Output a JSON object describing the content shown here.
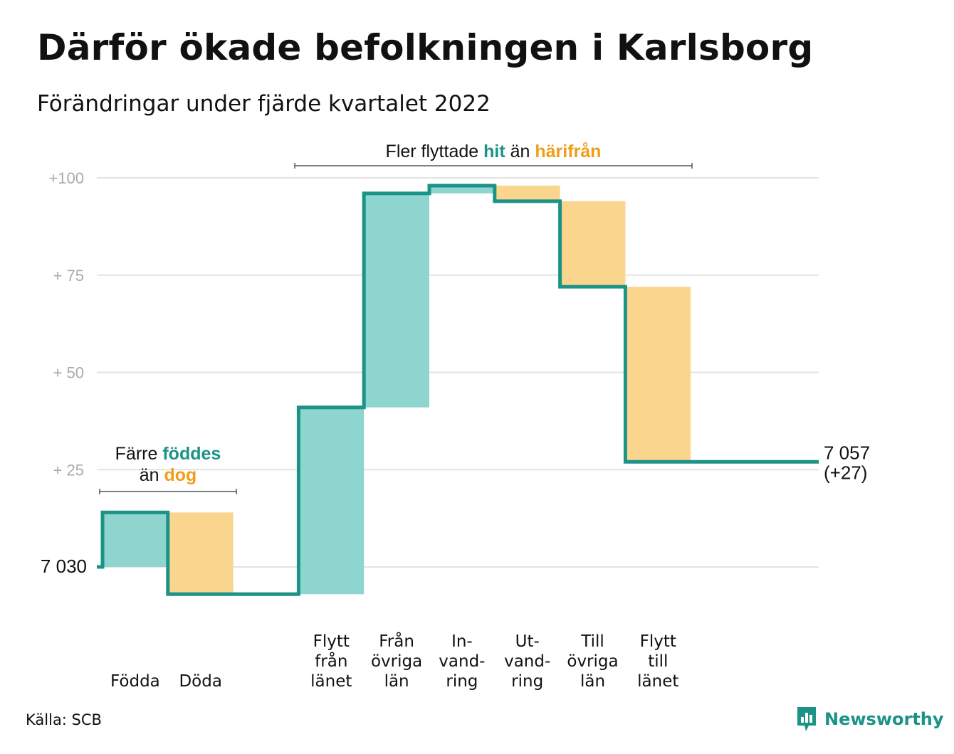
{
  "header": {
    "title": "Därför ökade befolkningen i Karlsborg",
    "subtitle": "Förändringar under fjärde kvartalet 2022"
  },
  "footer": {
    "source": "Källa: SCB",
    "logo_text": "Newsworthy",
    "logo_icon": "bar-chart-speech-icon"
  },
  "colors": {
    "increase_fill": "#8dd5ce",
    "decrease_fill": "#f9d58d",
    "line": "#1b9386",
    "accent_teal": "#1b9386",
    "accent_orange": "#f29d1a",
    "grid": "#e3e3e3"
  },
  "chart_data": {
    "type": "waterfall",
    "start_value": 7030,
    "start_label": "7 030",
    "end_value": 7057,
    "end_label": "7 057",
    "end_change_label": "(+27)",
    "ylim": [
      -7,
      100
    ],
    "yticks": [
      {
        "value": 100,
        "label": "+100"
      },
      {
        "value": 75,
        "label": "+ 75"
      },
      {
        "value": 50,
        "label": "+ 50"
      },
      {
        "value": 25,
        "label": "+ 25"
      }
    ],
    "grid": true,
    "categories": [
      {
        "label": [
          "Födda"
        ],
        "change": 14,
        "direction": "increase"
      },
      {
        "label": [
          "Döda"
        ],
        "change": -21,
        "direction": "decrease"
      },
      {
        "label": [],
        "change": 0,
        "direction": "none"
      },
      {
        "label": [
          "Flytt",
          "från",
          "länet"
        ],
        "change": 48,
        "direction": "increase"
      },
      {
        "label": [
          "Från",
          "övriga",
          "län"
        ],
        "change": 55,
        "direction": "increase"
      },
      {
        "label": [
          "In-",
          "vand-",
          "ring"
        ],
        "change": 2,
        "direction": "increase"
      },
      {
        "label": [
          "Ut-",
          "vand-",
          "ring"
        ],
        "change": -4,
        "direction": "decrease"
      },
      {
        "label": [
          "Till",
          "övriga",
          "län"
        ],
        "change": -22,
        "direction": "decrease"
      },
      {
        "label": [
          "Flytt",
          "till",
          "länet"
        ],
        "change": -45,
        "direction": "decrease"
      }
    ],
    "annotations": [
      {
        "id": "births",
        "lines": [
          [
            {
              "text": "Färre ",
              "style": "plain"
            },
            {
              "text": "föddes",
              "style": "teal"
            }
          ],
          [
            {
              "text": "än ",
              "style": "plain"
            },
            {
              "text": "dog",
              "style": "orange"
            }
          ]
        ],
        "spans": [
          "Födda",
          "Döda"
        ]
      },
      {
        "id": "migration",
        "lines": [
          [
            {
              "text": "Fler flyttade ",
              "style": "plain"
            },
            {
              "text": "hit",
              "style": "teal"
            },
            {
              "text": " än ",
              "style": "plain"
            },
            {
              "text": "härifrån",
              "style": "orange"
            }
          ]
        ],
        "spans": [
          "Flytt från länet",
          "Flytt till länet"
        ]
      }
    ]
  }
}
